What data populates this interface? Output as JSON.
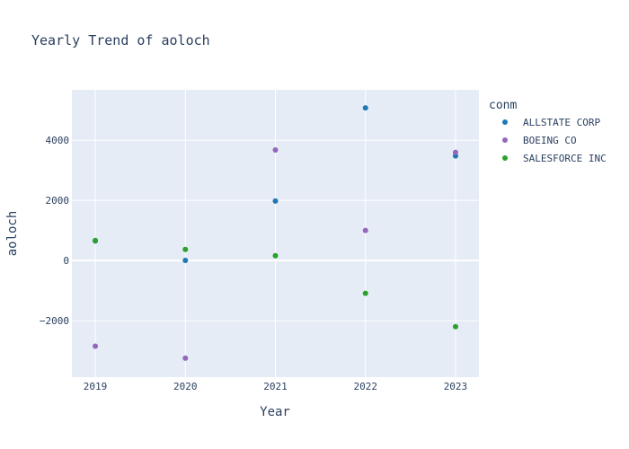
{
  "chart_data": {
    "type": "scatter",
    "title": "Yearly Trend of aoloch",
    "xlabel": "Year",
    "ylabel": "aoloch",
    "x": [
      2019,
      2020,
      2021,
      2022,
      2023
    ],
    "x_ticks": [
      "2019",
      "2020",
      "2021",
      "2022",
      "2023"
    ],
    "y_ticks": [
      -2000,
      0,
      2000,
      4000
    ],
    "y_tick_labels": [
      "−2000",
      "0",
      "2000",
      "4000"
    ],
    "xlim": [
      2018.74,
      2023.26
    ],
    "ylim": [
      -3880,
      5680
    ],
    "grid": true,
    "legend": {
      "title": "conm",
      "placement": "right"
    },
    "series": [
      {
        "name": "ALLSTATE CORP",
        "color": "#1f77b4",
        "points": [
          [
            2019,
            650
          ],
          [
            2020,
            5
          ],
          [
            2021,
            1980
          ],
          [
            2022,
            5080
          ],
          [
            2023,
            3480
          ]
        ]
      },
      {
        "name": "BOEING CO",
        "color": "#9467bd",
        "points": [
          [
            2019,
            -2850
          ],
          [
            2020,
            -3250
          ],
          [
            2021,
            3680
          ],
          [
            2022,
            1000
          ],
          [
            2023,
            3600
          ]
        ]
      },
      {
        "name": "SALESFORCE INC",
        "color": "#2ca02c",
        "points": [
          [
            2019,
            670
          ],
          [
            2020,
            370
          ],
          [
            2021,
            160
          ],
          [
            2022,
            -1090
          ],
          [
            2023,
            -2200
          ]
        ]
      }
    ]
  }
}
